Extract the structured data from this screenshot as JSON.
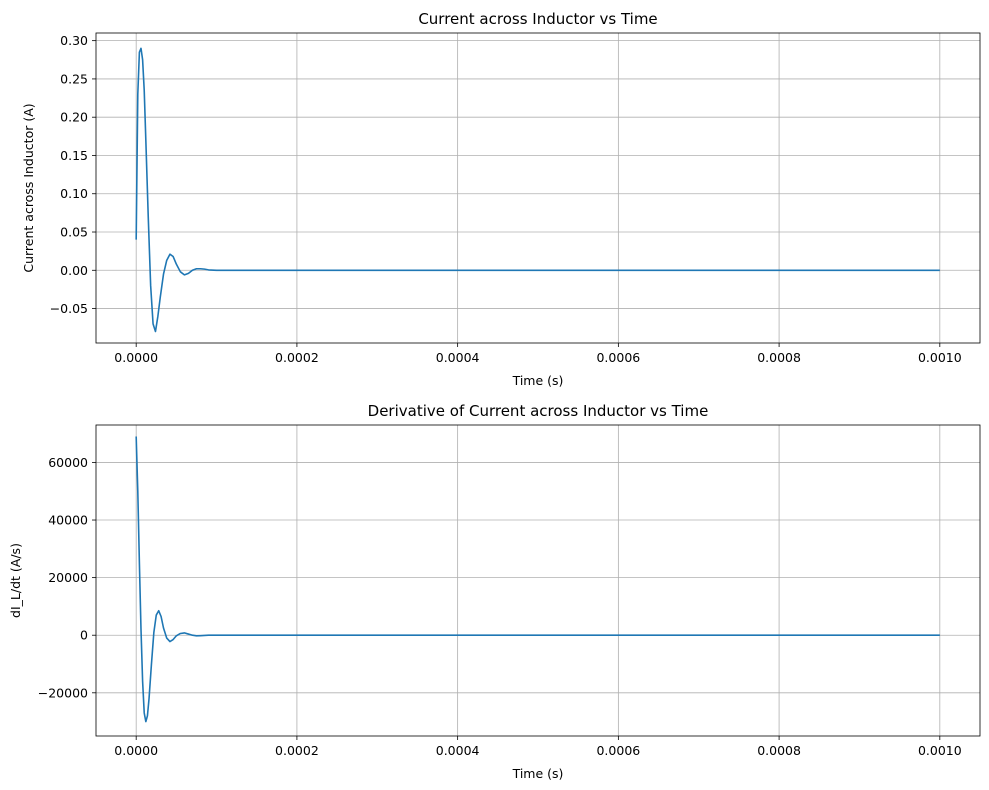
{
  "chart_data": [
    {
      "type": "line",
      "title": "Current across Inductor vs Time",
      "xlabel": "Time (s)",
      "ylabel": "Current across Inductor (A)",
      "xlim": [
        -5e-05,
        0.00105
      ],
      "ylim": [
        -0.095,
        0.31
      ],
      "xticks": [
        0.0,
        0.0002,
        0.0004,
        0.0006,
        0.0008,
        0.001
      ],
      "xtick_labels": [
        "0.0000",
        "0.0002",
        "0.0004",
        "0.0006",
        "0.0008",
        "0.0010"
      ],
      "yticks": [
        -0.05,
        0.0,
        0.05,
        0.1,
        0.15,
        0.2,
        0.25,
        0.3
      ],
      "ytick_labels": [
        "−0.05",
        "0.00",
        "0.05",
        "0.10",
        "0.15",
        "0.20",
        "0.25",
        "0.30"
      ],
      "grid": true,
      "line_color": "#1f77b4",
      "series": [
        {
          "x": [
            0.0,
            2e-06,
            4e-06,
            6e-06,
            8e-06,
            1e-05,
            1.2e-05,
            1.5e-05,
            1.8e-05,
            2.1e-05,
            2.4e-05,
            2.7e-05,
            3e-05,
            3.4e-05,
            3.8e-05,
            4.2e-05,
            4.6e-05,
            5e-05,
            5.5e-05,
            6e-05,
            6.5e-05,
            7e-05,
            7.5e-05,
            8e-05,
            8.5e-05,
            9e-05,
            0.0001,
            0.00011,
            0.00012,
            0.00015,
            0.0002,
            0.0003,
            0.0004,
            0.0005,
            0.0006,
            0.0007,
            0.0008,
            0.0009,
            0.001
          ],
          "y": [
            0.04,
            0.23,
            0.285,
            0.29,
            0.275,
            0.235,
            0.17,
            0.07,
            -0.02,
            -0.07,
            -0.08,
            -0.06,
            -0.035,
            -0.005,
            0.013,
            0.021,
            0.018,
            0.008,
            -0.002,
            -0.006,
            -0.004,
            0.0,
            0.002,
            0.002,
            0.0015,
            0.0005,
            0.0,
            0.0,
            0.0,
            0.0,
            0.0,
            0.0,
            0.0,
            0.0,
            0.0,
            0.0,
            0.0,
            0.0,
            0.0
          ]
        }
      ]
    },
    {
      "type": "line",
      "title": "Derivative of Current across Inductor vs Time",
      "xlabel": "Time (s)",
      "ylabel": "dI_L/dt (A/s)",
      "xlim": [
        -5e-05,
        0.00105
      ],
      "ylim": [
        -35000,
        73000
      ],
      "xticks": [
        0.0,
        0.0002,
        0.0004,
        0.0006,
        0.0008,
        0.001
      ],
      "xtick_labels": [
        "0.0000",
        "0.0002",
        "0.0004",
        "0.0006",
        "0.0008",
        "0.0010"
      ],
      "yticks": [
        -20000,
        0,
        20000,
        40000,
        60000
      ],
      "ytick_labels": [
        "−20000",
        "0",
        "20000",
        "40000",
        "60000"
      ],
      "grid": true,
      "line_color": "#1f77b4",
      "series": [
        {
          "x": [
            0.0,
            2e-06,
            4e-06,
            6e-06,
            8e-06,
            1e-05,
            1.2e-05,
            1.4e-05,
            1.6e-05,
            1.9e-05,
            2.2e-05,
            2.5e-05,
            2.8e-05,
            3.1e-05,
            3.4e-05,
            3.8e-05,
            4.2e-05,
            4.6e-05,
            5e-05,
            5.5e-05,
            6e-05,
            6.5e-05,
            7e-05,
            7.5e-05,
            8e-05,
            9e-05,
            0.0001,
            0.00011,
            0.00012,
            0.00015,
            0.0002,
            0.0003,
            0.0004,
            0.0005,
            0.0006,
            0.0007,
            0.0008,
            0.0009,
            0.001
          ],
          "y": [
            69000,
            50000,
            25000,
            2000,
            -16000,
            -27000,
            -30000,
            -28000,
            -22000,
            -10000,
            1000,
            7000,
            8500,
            6500,
            2500,
            -1000,
            -2200,
            -1500,
            -200,
            600,
            800,
            400,
            0,
            -200,
            -150,
            0,
            0,
            0,
            0,
            0,
            0,
            0,
            0,
            0,
            0,
            0,
            0,
            0,
            0
          ]
        }
      ]
    }
  ]
}
